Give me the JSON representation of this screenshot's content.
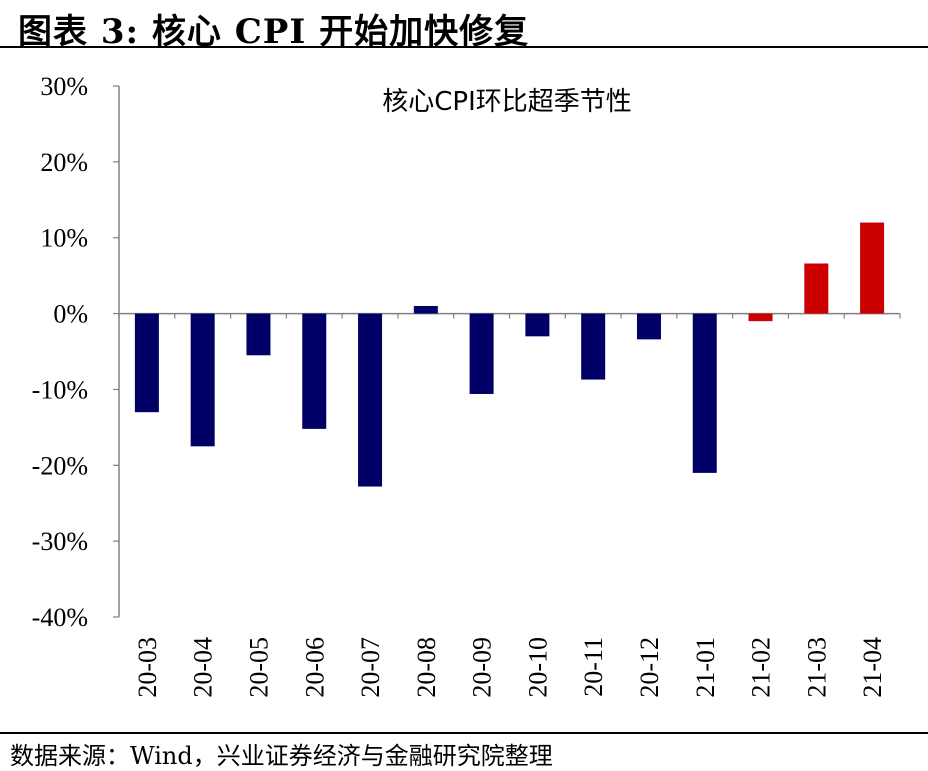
{
  "figure": {
    "title": "图表 3: 核心 CPI 开始加快修复",
    "source": "数据来源：Wind，兴业证券经济与金融研究院整理"
  },
  "colors": {
    "negative_bar": "#000066",
    "positive_bar": "#cc0000",
    "axis": "#808080"
  },
  "chart_data": {
    "type": "bar",
    "title": "核心CPI环比超季节性",
    "xlabel": "",
    "ylabel": "",
    "categories": [
      "20-03",
      "20-04",
      "20-05",
      "20-06",
      "20-07",
      "20-08",
      "20-09",
      "20-10",
      "20-11",
      "20-12",
      "21-01",
      "21-02",
      "21-03",
      "21-04"
    ],
    "series": [
      {
        "values": [
          -13,
          -17.5,
          -5.5,
          -15.2,
          -22.8,
          1.0,
          -10.6,
          -3.0,
          -8.7,
          -3.4,
          -21.0,
          -1.0,
          6.6,
          12.0
        ],
        "colors": [
          "#000066",
          "#000066",
          "#000066",
          "#000066",
          "#000066",
          "#000066",
          "#000066",
          "#000066",
          "#000066",
          "#000066",
          "#000066",
          "#cc0000",
          "#cc0000",
          "#cc0000"
        ]
      }
    ],
    "ylim": [
      -40,
      30
    ],
    "yticks": [
      30,
      20,
      10,
      0,
      -10,
      -20,
      -30,
      -40
    ],
    "ytick_labels": [
      "30%",
      "20%",
      "10%",
      "0%",
      "-10%",
      "-20%",
      "-30%",
      "-40%"
    ],
    "grid": false,
    "legend": "none",
    "x_tick_rotation": -90
  }
}
